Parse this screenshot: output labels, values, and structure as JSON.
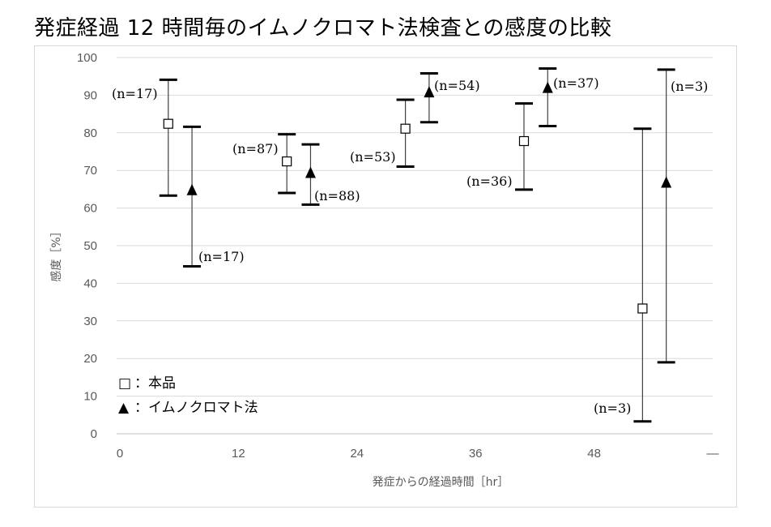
{
  "chart_data": {
    "type": "scatter",
    "title": "発症経過 12 時間毎のイムノクロマト法検査との感度の比較",
    "xlabel": "発症からの経過時間［hr］",
    "ylabel": "感度［%］",
    "xlim": [
      0,
      60
    ],
    "ylim": [
      0,
      100
    ],
    "y_ticks": [
      "0",
      "10",
      "20",
      "30",
      "40",
      "50",
      "60",
      "70",
      "80",
      "90",
      "100"
    ],
    "x_ticks": [
      {
        "value": 0,
        "label": "0"
      },
      {
        "value": 12,
        "label": "12"
      },
      {
        "value": 24,
        "label": "24"
      },
      {
        "value": 36,
        "label": "36"
      },
      {
        "value": 48,
        "label": "48"
      },
      {
        "value": 60,
        "label": "—"
      }
    ],
    "legend": [
      {
        "marker": "□",
        "text": "：本品"
      },
      {
        "marker": "▲",
        "text": "：イムノクロマト法"
      }
    ],
    "series": [
      {
        "name": "本品",
        "marker": "open-square",
        "points": [
          {
            "x": 4.9,
            "y": 82.4,
            "lower": 63.3,
            "upper": 94.1,
            "label": "(n=17)"
          },
          {
            "x": 16.9,
            "y": 72.4,
            "lower": 64.0,
            "upper": 79.6,
            "label": "(n=87)"
          },
          {
            "x": 28.9,
            "y": 81.1,
            "lower": 71.0,
            "upper": 88.8,
            "label": "(n=53)"
          },
          {
            "x": 40.9,
            "y": 77.8,
            "lower": 64.9,
            "upper": 87.8,
            "label": "(n=36)"
          },
          {
            "x": 52.9,
            "y": 33.3,
            "lower": 3.3,
            "upper": 81.1,
            "label": "(n=3)"
          }
        ]
      },
      {
        "name": "イムノクロマト法",
        "marker": "filled-triangle",
        "points": [
          {
            "x": 7.3,
            "y": 64.7,
            "lower": 44.5,
            "upper": 81.6,
            "label": "(n=17)"
          },
          {
            "x": 19.3,
            "y": 69.3,
            "lower": 60.9,
            "upper": 76.9,
            "label": "(n=88)"
          },
          {
            "x": 31.3,
            "y": 90.7,
            "lower": 82.8,
            "upper": 95.8,
            "label": "(n=54)"
          },
          {
            "x": 43.3,
            "y": 91.9,
            "lower": 81.8,
            "upper": 97.1,
            "label": "(n=37)"
          },
          {
            "x": 55.3,
            "y": 66.7,
            "lower": 19.0,
            "upper": 96.8,
            "label": "(n=3)"
          }
        ]
      }
    ]
  }
}
